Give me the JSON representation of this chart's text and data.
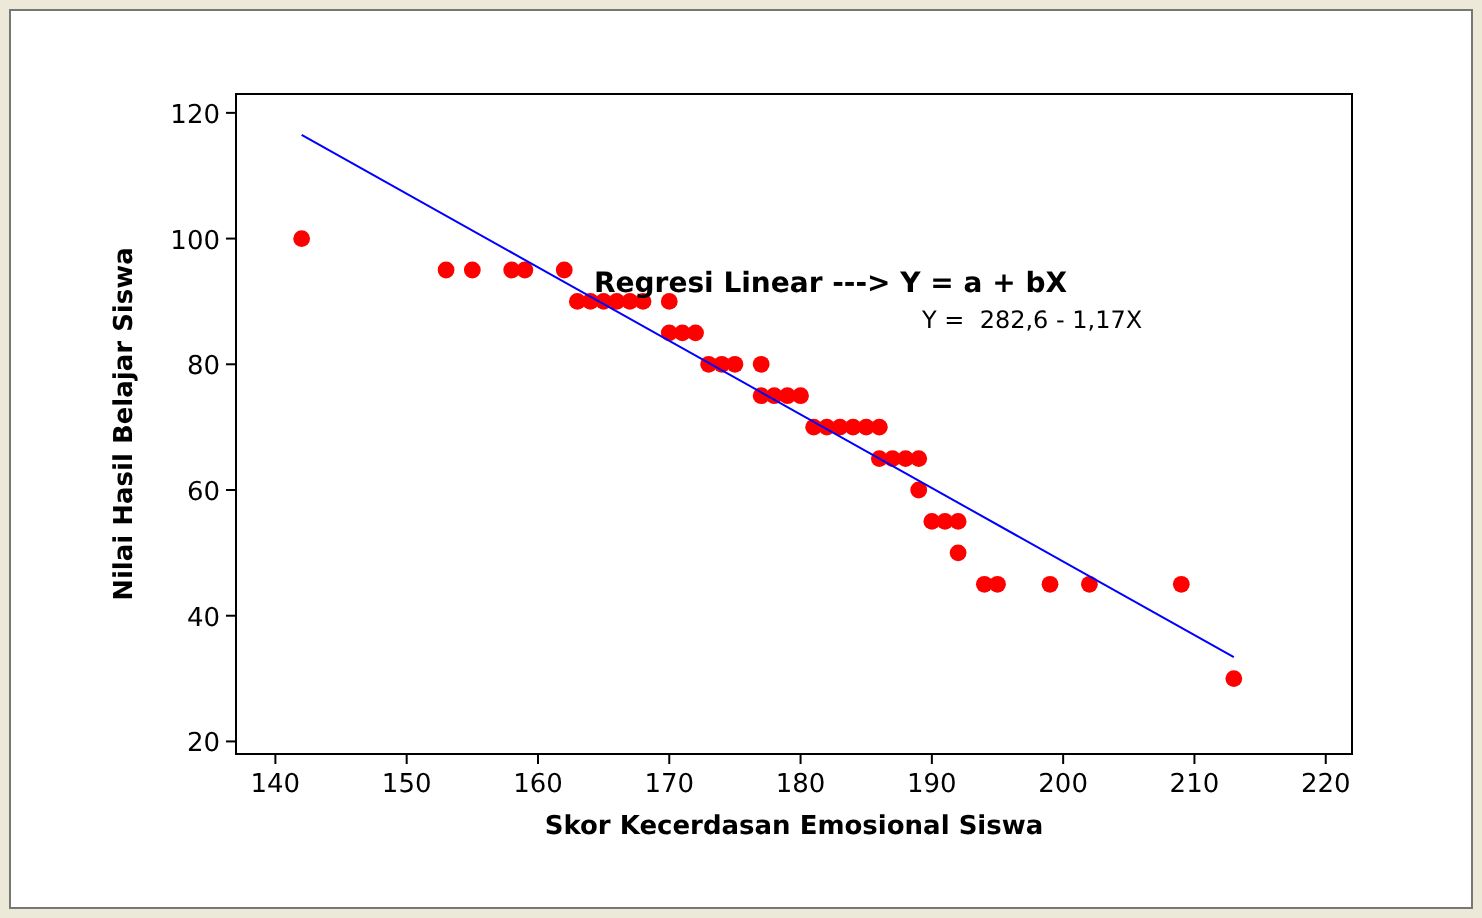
{
  "chart_data": {
    "type": "scatter",
    "xlabel": "Skor Kecerdasan Emosional Siswa",
    "ylabel": "Nilai Hasil Belajar Siswa",
    "xlim": [
      137,
      222
    ],
    "ylim": [
      18,
      123
    ],
    "xticks": [
      140,
      150,
      160,
      170,
      180,
      190,
      200,
      210,
      220
    ],
    "yticks": [
      20,
      40,
      60,
      80,
      100,
      120
    ],
    "grid": false,
    "annotations": [
      "Regresi Linear ---> Y = a + bX",
      "Y =  282,6 - 1,17X"
    ],
    "series": [
      {
        "marker": "circle",
        "color": "#ff0000",
        "x": [
          142,
          153,
          155,
          158,
          159,
          162,
          163,
          164,
          165,
          166,
          167,
          168,
          170,
          170,
          171,
          172,
          173,
          174,
          175,
          177,
          177,
          178,
          179,
          180,
          181,
          182,
          183,
          184,
          185,
          186,
          186,
          187,
          188,
          189,
          189,
          190,
          191,
          192,
          192,
          194,
          195,
          199,
          202,
          209,
          213
        ],
        "values": [
          100,
          95,
          95,
          95,
          95,
          95,
          90,
          90,
          90,
          90,
          90,
          90,
          90,
          85,
          85,
          85,
          80,
          80,
          80,
          80,
          75,
          75,
          75,
          75,
          70,
          70,
          70,
          70,
          70,
          70,
          65,
          65,
          65,
          65,
          60,
          55,
          55,
          55,
          50,
          45,
          45,
          45,
          45,
          45,
          30
        ]
      },
      {
        "type": "line",
        "color": "#0000ff",
        "x": [
          142,
          213
        ],
        "values": [
          116.5,
          33.4
        ]
      }
    ]
  }
}
